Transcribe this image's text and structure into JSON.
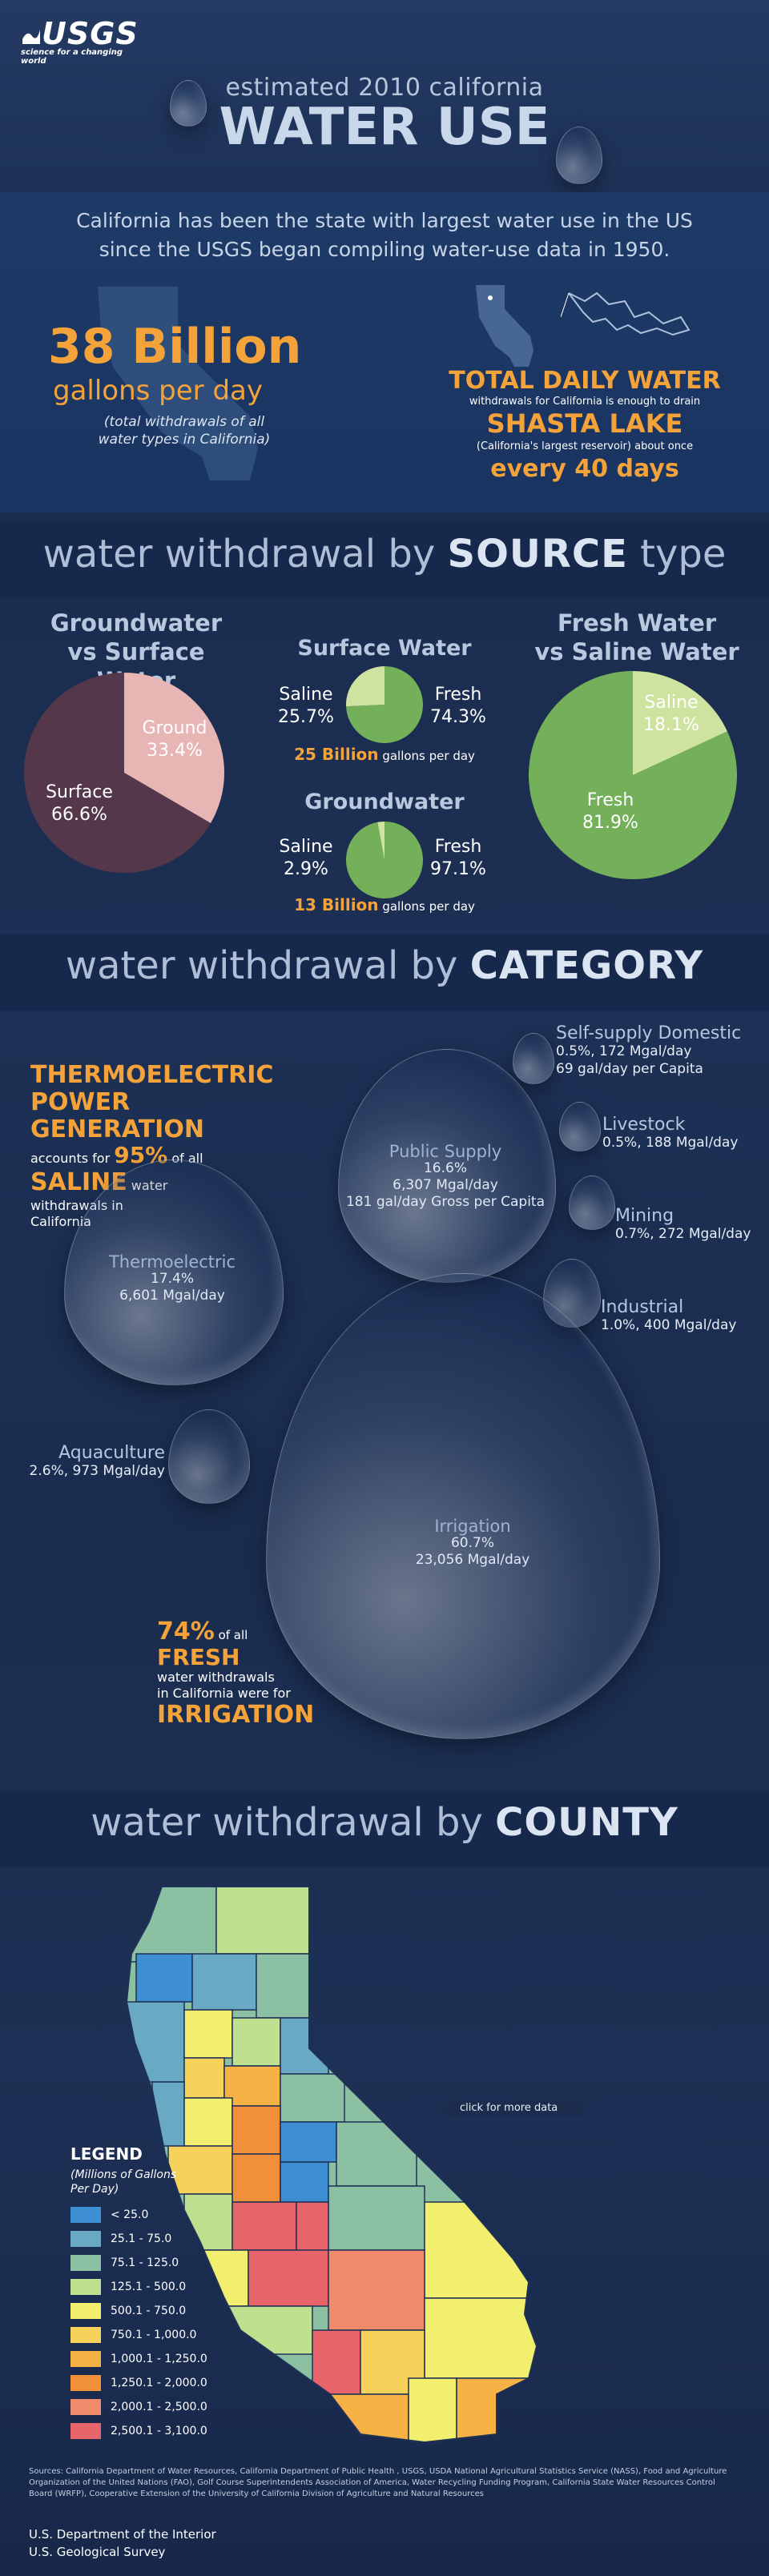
{
  "brand": {
    "logo_text": "USGS",
    "tagline": "science for a changing world"
  },
  "header": {
    "line1": "estimated 2010 california",
    "line2": "WATER USE"
  },
  "intro": "California has been the state with largest water use in the US since the USGS began compiling  water-use data in 1950.",
  "stat_left": {
    "value": "38 Billion",
    "unit": "gallons per day",
    "note": "(total withdrawals of all water types in California)"
  },
  "stat_right": {
    "title": "TOTAL DAILY WATER",
    "sub1": "withdrawals for California is enough to drain",
    "lake": "SHASTA LAKE",
    "sub2": "(California's largest reservoir) about once",
    "every": "every 40 days"
  },
  "source_section": {
    "pre": "water withdrawal by ",
    "bold": "SOURCE",
    "post": " type"
  },
  "gw_vs_sw": {
    "title1": "Groundwater",
    "title2": "vs Surface Water",
    "ground_label": "Ground",
    "ground_pct": "33.4%",
    "surface_label": "Surface",
    "surface_pct": "66.6%"
  },
  "surface_water": {
    "title": "Surface Water",
    "saline_label": "Saline",
    "saline_pct": "25.7%",
    "fresh_label": "Fresh",
    "fresh_pct": "74.3%",
    "amount": "25 Billion",
    "amount_unit": " gallons per day"
  },
  "groundwater": {
    "title": "Groundwater",
    "saline_label": "Saline",
    "saline_pct": "2.9%",
    "fresh_label": "Fresh",
    "fresh_pct": "97.1%",
    "amount": "13 Billion",
    "amount_unit": " gallons per day"
  },
  "fresh_vs_saline": {
    "title1": "Fresh Water",
    "title2": "vs Saline Water",
    "saline_label": "Saline",
    "saline_pct": "18.1%",
    "fresh_label": "Fresh",
    "fresh_pct": "81.9%"
  },
  "category_section": {
    "pre": "water withdrawal by ",
    "bold": "CATEGORY"
  },
  "thermo_callout": {
    "l1": "THERMOELECTRIC",
    "l2": "POWER GENERATION",
    "l3a": "accounts for ",
    "l3b": "95%",
    "l3c": " of all",
    "l4a": "SALINE",
    "l4b": " water",
    "l5": "withdrawals in",
    "l6": "California"
  },
  "irrigation_callout": {
    "l1a": "74%",
    "l1b": " of all",
    "l2": "FRESH",
    "l3": "water  withdrawals",
    "l4": "in California were for",
    "l5": "IRRIGATION"
  },
  "categories": {
    "self_supply": {
      "name": "Self-supply Domestic",
      "l1": "0.5%, 172 Mgal/day",
      "l2": "69 gal/day per Capita"
    },
    "livestock": {
      "name": "Livestock",
      "l1": "0.5%, 188 Mgal/day"
    },
    "mining": {
      "name": "Mining",
      "l1": "0.7%, 272 Mgal/day"
    },
    "industrial": {
      "name": "Industrial",
      "l1": "1.0%, 400 Mgal/day"
    },
    "public_supply": {
      "name": "Public Supply",
      "l1": "16.6%",
      "l2": "6,307 Mgal/day",
      "l3": "181 gal/day Gross per Capita"
    },
    "thermoelectric": {
      "name": "Thermoelectric",
      "l1": "17.4%",
      "l2": "6,601 Mgal/day"
    },
    "aquaculture": {
      "name": "Aquaculture",
      "l1": "2.6%, 973 Mgal/day"
    },
    "irrigation": {
      "name": "Irrigation",
      "l1": "60.7%",
      "l2": "23,056 Mgal/day"
    }
  },
  "county_section": {
    "pre": "water withdrawal by ",
    "bold": "COUNTY"
  },
  "map": {
    "more_data": "click for more data"
  },
  "legend": {
    "title": "LEGEND",
    "subtitle1": "(Millions of Gallons",
    "subtitle2": "Per Day)",
    "items": [
      {
        "label": "< 25.0",
        "color": "#3d8fd1"
      },
      {
        "label": "25.1 - 75.0",
        "color": "#6aa9c4"
      },
      {
        "label": "75.1 - 125.0",
        "color": "#8cc0a2"
      },
      {
        "label": "125.1 - 500.0",
        "color": "#bfe08f"
      },
      {
        "label": "500.1 - 750.0",
        "color": "#f2ef6e"
      },
      {
        "label": "750.1 - 1,000.0",
        "color": "#f7d25a"
      },
      {
        "label": "1,000.1 - 1,250.0",
        "color": "#f6b244"
      },
      {
        "label": "1,250.1 - 2,000.0",
        "color": "#f28f3b"
      },
      {
        "label": "2,000.1 - 2,500.0",
        "color": "#ef8a6a"
      },
      {
        "label": "2,500.1 - 3,100.0",
        "color": "#e8646b"
      }
    ]
  },
  "sources": "Sources: California Department of Water Resources, California Department of Public Health , USGS, USDA National Agricultural Statistics Service (NASS), Food and Agriculture Organization of the United Nations (FAO), Golf Course Superintendents Association of America, Water Recycling Funding Program, California State Water Resources Control Board (WRFP), Cooperative Extension of the University of California Division of Agriculture and Natural Resources",
  "footer": {
    "line1": "U.S. Department of the Interior",
    "line2": "U.S. Geological Survey"
  },
  "colors": {
    "accent_orange": "#f3a33a",
    "pie_green": "#74b05a",
    "pie_light_green": "#cfe3a0",
    "pie_pink": "#e8b5b5",
    "pie_dark": "#54374a"
  }
}
